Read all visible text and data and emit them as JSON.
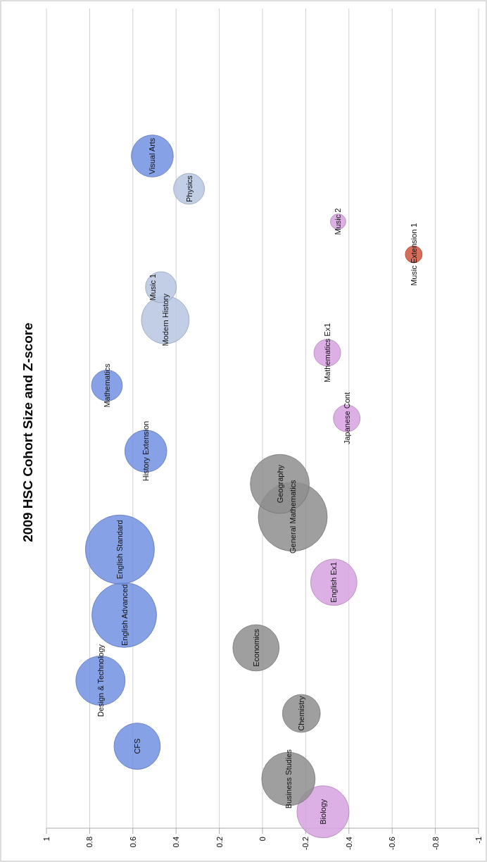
{
  "chart_data": {
    "type": "bubble",
    "title": "2009 HSC Cohort Size and Z-score",
    "orientation": "horizontal",
    "categories": [
      null,
      null,
      null,
      null,
      null,
      null,
      null,
      null,
      null,
      null,
      null,
      null,
      null,
      null,
      null,
      null,
      null,
      null,
      null,
      null,
      null,
      null,
      null,
      null,
      null
    ],
    "xlim": [
      1,
      -1
    ],
    "xticks": [
      1,
      0.8,
      0.6,
      0.4,
      0.2,
      0,
      -0.2,
      -0.4,
      -0.6,
      -0.8,
      -1
    ],
    "grid": "x",
    "legend": false,
    "series": [
      {
        "name": "Biology",
        "color": "#d6a2e0",
        "values": [
          null,
          null,
          null,
          null,
          null,
          null,
          null,
          null,
          null,
          null,
          null,
          null,
          null,
          null,
          null,
          null,
          null,
          null,
          null,
          null,
          null,
          null,
          null,
          null,
          -0.28
        ],
        "sizes": [
          null,
          null,
          null,
          null,
          null,
          null,
          null,
          null,
          null,
          null,
          null,
          null,
          null,
          null,
          null,
          null,
          null,
          null,
          null,
          null,
          null,
          null,
          null,
          null,
          0.57
        ]
      },
      {
        "name": "Business Studies",
        "color": "#8e8e8e",
        "values": [
          null,
          null,
          null,
          null,
          null,
          null,
          null,
          null,
          null,
          null,
          null,
          null,
          null,
          null,
          null,
          null,
          null,
          null,
          null,
          null,
          null,
          null,
          null,
          -0.12,
          null
        ],
        "sizes": [
          null,
          null,
          null,
          null,
          null,
          null,
          null,
          null,
          null,
          null,
          null,
          null,
          null,
          null,
          null,
          null,
          null,
          null,
          null,
          null,
          null,
          null,
          null,
          0.6,
          null
        ]
      },
      {
        "name": "CFS",
        "color": "#7290e2",
        "values": [
          null,
          null,
          null,
          null,
          null,
          null,
          null,
          null,
          null,
          null,
          null,
          null,
          null,
          null,
          null,
          null,
          null,
          null,
          null,
          null,
          null,
          null,
          0.58,
          null,
          null
        ],
        "sizes": [
          null,
          null,
          null,
          null,
          null,
          null,
          null,
          null,
          null,
          null,
          null,
          null,
          null,
          null,
          null,
          null,
          null,
          null,
          null,
          null,
          null,
          null,
          0.45,
          null,
          null
        ]
      },
      {
        "name": "Chemistry",
        "color": "#8e8e8e",
        "values": [
          null,
          null,
          null,
          null,
          null,
          null,
          null,
          null,
          null,
          null,
          null,
          null,
          null,
          null,
          null,
          null,
          null,
          null,
          null,
          null,
          null,
          -0.18,
          null,
          null,
          null
        ],
        "sizes": [
          null,
          null,
          null,
          null,
          null,
          null,
          null,
          null,
          null,
          null,
          null,
          null,
          null,
          null,
          null,
          null,
          null,
          null,
          null,
          null,
          null,
          0.3,
          null,
          null,
          null
        ]
      },
      {
        "name": "Design & Technology",
        "color": "#7290e2",
        "values": [
          null,
          null,
          null,
          null,
          null,
          null,
          null,
          null,
          null,
          null,
          null,
          null,
          null,
          null,
          null,
          null,
          null,
          null,
          null,
          null,
          0.75,
          null,
          null,
          null,
          null
        ],
        "sizes": [
          null,
          null,
          null,
          null,
          null,
          null,
          null,
          null,
          null,
          null,
          null,
          null,
          null,
          null,
          null,
          null,
          null,
          null,
          null,
          null,
          0.51,
          null,
          null,
          null,
          null
        ]
      },
      {
        "name": "Economics",
        "color": "#8e8e8e",
        "values": [
          null,
          null,
          null,
          null,
          null,
          null,
          null,
          null,
          null,
          null,
          null,
          null,
          null,
          null,
          null,
          null,
          null,
          null,
          null,
          0.03,
          null,
          null,
          null,
          null,
          null
        ],
        "sizes": [
          null,
          null,
          null,
          null,
          null,
          null,
          null,
          null,
          null,
          null,
          null,
          null,
          null,
          null,
          null,
          null,
          null,
          null,
          null,
          0.45,
          null,
          null,
          null,
          null,
          null
        ]
      },
      {
        "name": "English Advanced",
        "color": "#7290e2",
        "values": [
          null,
          null,
          null,
          null,
          null,
          null,
          null,
          null,
          null,
          null,
          null,
          null,
          null,
          null,
          null,
          null,
          null,
          null,
          0.64,
          null,
          null,
          null,
          null,
          null,
          null
        ],
        "sizes": [
          null,
          null,
          null,
          null,
          null,
          null,
          null,
          null,
          null,
          null,
          null,
          null,
          null,
          null,
          null,
          null,
          null,
          null,
          0.88,
          null,
          null,
          null,
          null,
          null,
          null
        ]
      },
      {
        "name": "English Ex1",
        "color": "#d6a2e0",
        "values": [
          null,
          null,
          null,
          null,
          null,
          null,
          null,
          null,
          null,
          null,
          null,
          null,
          null,
          null,
          null,
          null,
          null,
          -0.33,
          null,
          null,
          null,
          null,
          null,
          null,
          null
        ],
        "sizes": [
          null,
          null,
          null,
          null,
          null,
          null,
          null,
          null,
          null,
          null,
          null,
          null,
          null,
          null,
          null,
          null,
          null,
          0.45,
          null,
          null,
          null,
          null,
          null,
          null,
          null
        ]
      },
      {
        "name": "English Standard",
        "color": "#7290e2",
        "values": [
          null,
          null,
          null,
          null,
          null,
          null,
          null,
          null,
          null,
          null,
          null,
          null,
          null,
          null,
          null,
          null,
          0.66,
          null,
          null,
          null,
          null,
          null,
          null,
          null,
          null
        ],
        "sizes": [
          null,
          null,
          null,
          null,
          null,
          null,
          null,
          null,
          null,
          null,
          null,
          null,
          null,
          null,
          null,
          null,
          1,
          null,
          null,
          null,
          null,
          null,
          null,
          null,
          null
        ]
      },
      {
        "name": "General Mathematics",
        "color": "#8e8e8e",
        "values": [
          null,
          null,
          null,
          null,
          null,
          null,
          null,
          null,
          null,
          null,
          null,
          null,
          null,
          null,
          null,
          -0.14,
          null,
          null,
          null,
          null,
          null,
          null,
          null,
          null,
          null
        ],
        "sizes": [
          null,
          null,
          null,
          null,
          null,
          null,
          null,
          null,
          null,
          null,
          null,
          null,
          null,
          null,
          null,
          1,
          null,
          null,
          null,
          null,
          null,
          null,
          null,
          null,
          null
        ]
      },
      {
        "name": "Geography",
        "color": "#8e8e8e",
        "values": [
          null,
          null,
          null,
          null,
          null,
          null,
          null,
          null,
          null,
          null,
          null,
          null,
          null,
          null,
          -0.08,
          null,
          null,
          null,
          null,
          null,
          null,
          null,
          null,
          null,
          null
        ],
        "sizes": [
          null,
          null,
          null,
          null,
          null,
          null,
          null,
          null,
          null,
          null,
          null,
          null,
          null,
          null,
          0.73,
          null,
          null,
          null,
          null,
          null,
          null,
          null,
          null,
          null,
          null
        ]
      },
      {
        "name": "History Extension",
        "color": "#7290e2",
        "values": [
          null,
          null,
          null,
          null,
          null,
          null,
          null,
          null,
          null,
          null,
          null,
          null,
          null,
          0.54,
          null,
          null,
          null,
          null,
          null,
          null,
          null,
          null,
          null,
          null,
          null
        ],
        "sizes": [
          null,
          null,
          null,
          null,
          null,
          null,
          null,
          null,
          null,
          null,
          null,
          null,
          null,
          0.37,
          null,
          null,
          null,
          null,
          null,
          null,
          null,
          null,
          null,
          null,
          null
        ]
      },
      {
        "name": "Japanese Cont",
        "color": "#d6a2e0",
        "values": [
          null,
          null,
          null,
          null,
          null,
          null,
          null,
          null,
          null,
          null,
          null,
          null,
          -0.39,
          null,
          null,
          null,
          null,
          null,
          null,
          null,
          null,
          null,
          null,
          null,
          null
        ],
        "sizes": [
          null,
          null,
          null,
          null,
          null,
          null,
          null,
          null,
          null,
          null,
          null,
          null,
          0.15,
          null,
          null,
          null,
          null,
          null,
          null,
          null,
          null,
          null,
          null,
          null,
          null
        ]
      },
      {
        "name": "Mathematics",
        "color": "#7290e2",
        "values": [
          null,
          null,
          null,
          null,
          null,
          null,
          null,
          null,
          null,
          null,
          null,
          0.72,
          null,
          null,
          null,
          null,
          null,
          null,
          null,
          null,
          null,
          null,
          null,
          null,
          null
        ],
        "sizes": [
          null,
          null,
          null,
          null,
          null,
          null,
          null,
          null,
          null,
          null,
          null,
          0.2,
          null,
          null,
          null,
          null,
          null,
          null,
          null,
          null,
          null,
          null,
          null,
          null,
          null
        ]
      },
      {
        "name": "Mathematics Ex1",
        "color": "#d6a2e0",
        "values": [
          null,
          null,
          null,
          null,
          null,
          null,
          null,
          null,
          null,
          null,
          -0.3,
          null,
          null,
          null,
          null,
          null,
          null,
          null,
          null,
          null,
          null,
          null,
          null,
          null,
          null
        ],
        "sizes": [
          null,
          null,
          null,
          null,
          null,
          null,
          null,
          null,
          null,
          null,
          0.15,
          null,
          null,
          null,
          null,
          null,
          null,
          null,
          null,
          null,
          null,
          null,
          null,
          null,
          null
        ]
      },
      {
        "name": "Modern History",
        "color": "#b7c6e0",
        "values": [
          null,
          null,
          null,
          null,
          null,
          null,
          null,
          null,
          null,
          0.45,
          null,
          null,
          null,
          null,
          null,
          null,
          null,
          null,
          null,
          null,
          null,
          null,
          null,
          null,
          null
        ],
        "sizes": [
          null,
          null,
          null,
          null,
          null,
          null,
          null,
          null,
          null,
          0.48,
          null,
          null,
          null,
          null,
          null,
          null,
          null,
          null,
          null,
          null,
          null,
          null,
          null,
          null,
          null
        ]
      },
      {
        "name": "Music 1",
        "color": "#b7c6e0",
        "values": [
          null,
          null,
          null,
          null,
          null,
          null,
          null,
          null,
          0.47,
          null,
          null,
          null,
          null,
          null,
          null,
          null,
          null,
          null,
          null,
          null,
          null,
          null,
          null,
          null,
          null
        ],
        "sizes": [
          null,
          null,
          null,
          null,
          null,
          null,
          null,
          null,
          0.2,
          null,
          null,
          null,
          null,
          null,
          null,
          null,
          null,
          null,
          null,
          null,
          null,
          null,
          null,
          null,
          null
        ]
      },
      {
        "name": "Music Extension 1",
        "color": "#d0553f",
        "values": [
          null,
          null,
          null,
          null,
          null,
          null,
          null,
          -0.7,
          null,
          null,
          null,
          null,
          null,
          null,
          null,
          null,
          null,
          null,
          null,
          null,
          null,
          null,
          null,
          null,
          null
        ],
        "sizes": [
          null,
          null,
          null,
          null,
          null,
          null,
          null,
          0.06,
          null,
          null,
          null,
          null,
          null,
          null,
          null,
          null,
          null,
          null,
          null,
          null,
          null,
          null,
          null,
          null,
          null
        ]
      },
      {
        "name": "Music 2",
        "color": "#d6a2e0",
        "values": [
          null,
          null,
          null,
          null,
          null,
          null,
          -0.35,
          null,
          null,
          null,
          null,
          null,
          null,
          null,
          null,
          null,
          null,
          null,
          null,
          null,
          null,
          null,
          null,
          null,
          null
        ],
        "sizes": [
          null,
          null,
          null,
          null,
          null,
          null,
          0.05,
          null,
          null,
          null,
          null,
          null,
          null,
          null,
          null,
          null,
          null,
          null,
          null,
          null,
          null,
          null,
          null,
          null,
          null
        ]
      },
      {
        "name": "Physics",
        "color": "#b7c6e0",
        "values": [
          null,
          null,
          null,
          null,
          null,
          0.34,
          null,
          null,
          null,
          null,
          null,
          null,
          null,
          null,
          null,
          null,
          null,
          null,
          null,
          null,
          null,
          null,
          null,
          null,
          null
        ],
        "sizes": [
          null,
          null,
          null,
          null,
          null,
          0.2,
          null,
          null,
          null,
          null,
          null,
          null,
          null,
          null,
          null,
          null,
          null,
          null,
          null,
          null,
          null,
          null,
          null,
          null,
          null
        ]
      },
      {
        "name": "Visual Arts",
        "color": "#7290e2",
        "values": [
          null,
          null,
          null,
          null,
          0.51,
          null,
          null,
          null,
          null,
          null,
          null,
          null,
          null,
          null,
          null,
          null,
          null,
          null,
          null,
          null,
          null,
          null,
          null,
          null,
          null
        ],
        "sizes": [
          null,
          null,
          null,
          null,
          0.37,
          null,
          null,
          null,
          null,
          null,
          null,
          null,
          null,
          null,
          null,
          null,
          null,
          null,
          null,
          null,
          null,
          null,
          null,
          null,
          null
        ]
      }
    ]
  }
}
